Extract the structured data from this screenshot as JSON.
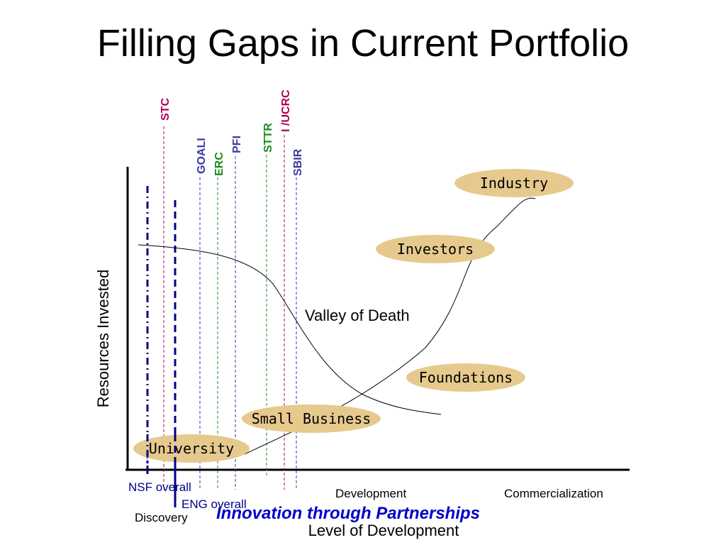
{
  "title": "Filling Gaps in Current Portfolio",
  "subtitle": "Innovation through Partnerships",
  "axes": {
    "ylabel": "Resources Invested",
    "xlabel": "Level of Development",
    "stages": [
      "Discovery",
      "Development",
      "Commercialization"
    ]
  },
  "programs": [
    {
      "name": "STC",
      "color": "#b0005a"
    },
    {
      "name": "GOALI",
      "color": "#3a3aa0"
    },
    {
      "name": "ERC",
      "color": "#1a8c1a"
    },
    {
      "name": "PFI",
      "color": "#3a3aa0"
    },
    {
      "name": "STTR",
      "color": "#1a8c1a"
    },
    {
      "name": "I /UCRC",
      "color": "#b0005a"
    },
    {
      "name": "SBIR",
      "color": "#3a3aa0"
    }
  ],
  "overall_lines": [
    {
      "name": "NSF overall",
      "color": "#00008b"
    },
    {
      "name": "ENG overall",
      "color": "#00008b"
    }
  ],
  "partners": [
    "Industry",
    "Investors",
    "Foundations",
    "Small Business",
    "University"
  ],
  "annotation": "Valley of Death",
  "colors": {
    "partner_fill": "#e6c98d",
    "subtitle": "#0000cc"
  }
}
